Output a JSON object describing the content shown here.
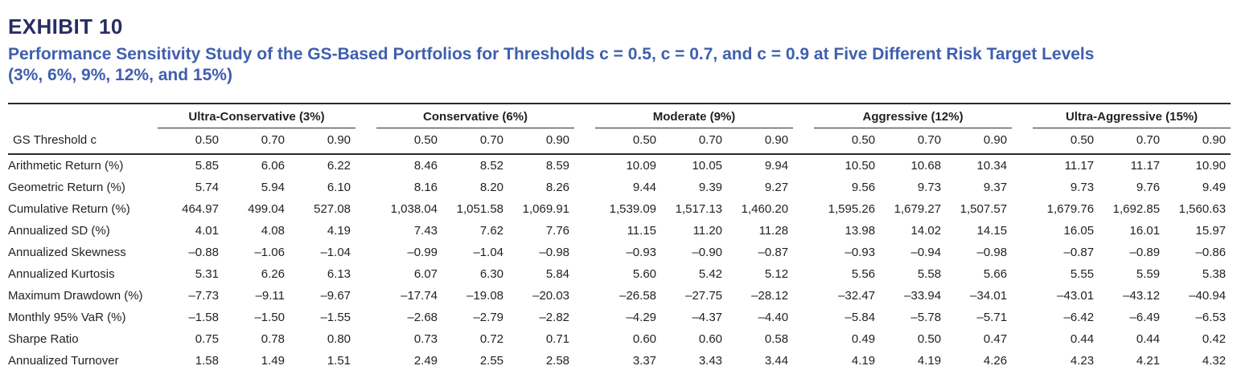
{
  "exhibit": {
    "label": "EXHIBIT 10",
    "title_line1": "Performance Sensitivity Study of the GS-Based Portfolios for Thresholds c = 0.5, c = 0.7, and c = 0.9 at Five Different Risk Target Levels",
    "title_line2": "(3%, 6%, 9%, 12%, and 15%)"
  },
  "colors": {
    "exhibit_label_navy": "#272e63",
    "title_blue": "#3f5fae",
    "table_text": "#231f20",
    "rule": "#2a2a2a"
  },
  "chart_data": {
    "type": "table",
    "title": "Performance Sensitivity Study of the GS-Based Portfolios",
    "row_header_label": "GS Threshold c",
    "groups": [
      {
        "label": "Ultra-Conservative (3%)",
        "thresholds": [
          "0.50",
          "0.70",
          "0.90"
        ]
      },
      {
        "label": "Conservative (6%)",
        "thresholds": [
          "0.50",
          "0.70",
          "0.90"
        ]
      },
      {
        "label": "Moderate (9%)",
        "thresholds": [
          "0.50",
          "0.70",
          "0.90"
        ]
      },
      {
        "label": "Aggressive (12%)",
        "thresholds": [
          "0.50",
          "0.70",
          "0.90"
        ]
      },
      {
        "label": "Ultra-Aggressive (15%)",
        "thresholds": [
          "0.50",
          "0.70",
          "0.90"
        ]
      }
    ],
    "rows": [
      {
        "label": "Arithmetic Return (%)",
        "values": [
          "5.85",
          "6.06",
          "6.22",
          "8.46",
          "8.52",
          "8.59",
          "10.09",
          "10.05",
          "9.94",
          "10.50",
          "10.68",
          "10.34",
          "11.17",
          "11.17",
          "10.90"
        ]
      },
      {
        "label": "Geometric Return (%)",
        "values": [
          "5.74",
          "5.94",
          "6.10",
          "8.16",
          "8.20",
          "8.26",
          "9.44",
          "9.39",
          "9.27",
          "9.56",
          "9.73",
          "9.37",
          "9.73",
          "9.76",
          "9.49"
        ]
      },
      {
        "label": "Cumulative Return (%)",
        "values": [
          "464.97",
          "499.04",
          "527.08",
          "1,038.04",
          "1,051.58",
          "1,069.91",
          "1,539.09",
          "1,517.13",
          "1,460.20",
          "1,595.26",
          "1,679.27",
          "1,507.57",
          "1,679.76",
          "1,692.85",
          "1,560.63"
        ]
      },
      {
        "label": "Annualized SD (%)",
        "values": [
          "4.01",
          "4.08",
          "4.19",
          "7.43",
          "7.62",
          "7.76",
          "11.15",
          "11.20",
          "11.28",
          "13.98",
          "14.02",
          "14.15",
          "16.05",
          "16.01",
          "15.97"
        ]
      },
      {
        "label": "Annualized Skewness",
        "values": [
          "–0.88",
          "–1.06",
          "–1.04",
          "–0.99",
          "–1.04",
          "–0.98",
          "–0.93",
          "–0.90",
          "–0.87",
          "–0.93",
          "–0.94",
          "–0.98",
          "–0.87",
          "–0.89",
          "–0.86"
        ]
      },
      {
        "label": "Annualized Kurtosis",
        "values": [
          "5.31",
          "6.26",
          "6.13",
          "6.07",
          "6.30",
          "5.84",
          "5.60",
          "5.42",
          "5.12",
          "5.56",
          "5.58",
          "5.66",
          "5.55",
          "5.59",
          "5.38"
        ]
      },
      {
        "label": "Maximum Drawdown (%)",
        "values": [
          "–7.73",
          "–9.11",
          "–9.67",
          "–17.74",
          "–19.08",
          "–20.03",
          "–26.58",
          "–27.75",
          "–28.12",
          "–32.47",
          "–33.94",
          "–34.01",
          "–43.01",
          "–43.12",
          "–40.94"
        ]
      },
      {
        "label": "Monthly 95% VaR (%)",
        "values": [
          "–1.58",
          "–1.50",
          "–1.55",
          "–2.68",
          "–2.79",
          "–2.82",
          "–4.29",
          "–4.37",
          "–4.40",
          "–5.84",
          "–5.78",
          "–5.71",
          "–6.42",
          "–6.49",
          "–6.53"
        ]
      },
      {
        "label": "Sharpe Ratio",
        "values": [
          "0.75",
          "0.78",
          "0.80",
          "0.73",
          "0.72",
          "0.71",
          "0.60",
          "0.60",
          "0.58",
          "0.49",
          "0.50",
          "0.47",
          "0.44",
          "0.44",
          "0.42"
        ]
      },
      {
        "label": "Annualized Turnover",
        "values": [
          "1.58",
          "1.49",
          "1.51",
          "2.49",
          "2.55",
          "2.58",
          "3.37",
          "3.43",
          "3.44",
          "4.19",
          "4.19",
          "4.26",
          "4.23",
          "4.21",
          "4.32"
        ]
      }
    ]
  }
}
